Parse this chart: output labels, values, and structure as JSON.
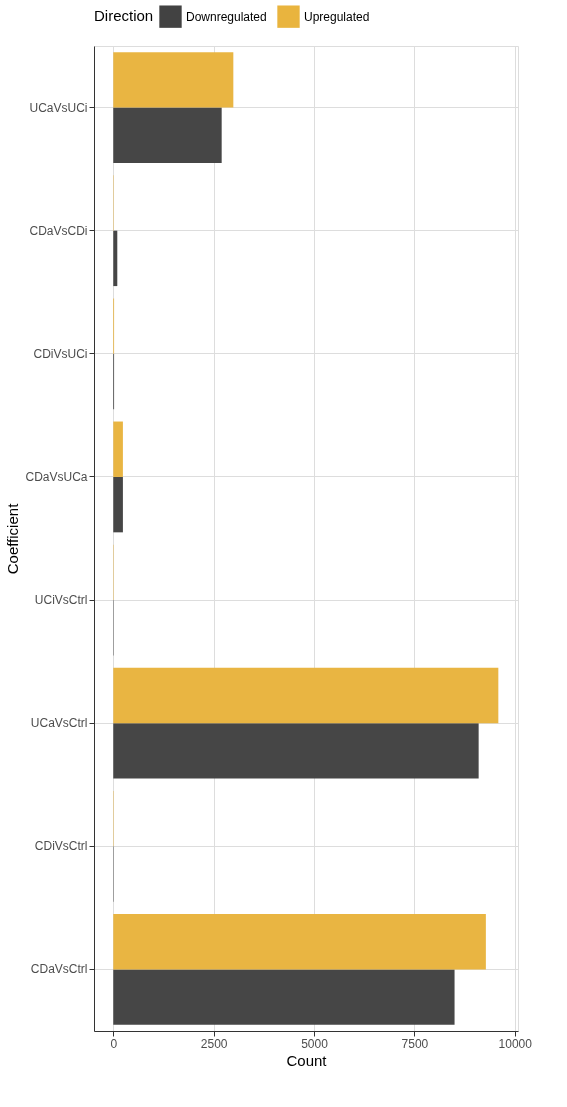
{
  "chart_data": {
    "type": "bar",
    "orientation": "horizontal",
    "xlabel": "Count",
    "ylabel": "Coefficient",
    "legend_title": "Direction",
    "legend": "top",
    "categories": [
      "UCaVsUCi",
      "CDaVsCDi",
      "CDiVsUCi",
      "CDaVsUCa",
      "UCiVsCtrl",
      "UCaVsCtrl",
      "CDiVsCtrl",
      "CDaVsCtrl"
    ],
    "series": [
      {
        "name": "Downregulated",
        "color": "#424242",
        "values": [
          2700,
          100,
          20,
          240,
          10,
          9100,
          10,
          8500
        ]
      },
      {
        "name": "Upregulated",
        "color": "#e9b43e",
        "values": [
          2990,
          10,
          20,
          240,
          10,
          9590,
          10,
          9280
        ]
      }
    ],
    "xlim": [
      -480,
      10080
    ],
    "xticks": [
      0,
      2500,
      5000,
      7500,
      10000
    ],
    "grid": true
  }
}
